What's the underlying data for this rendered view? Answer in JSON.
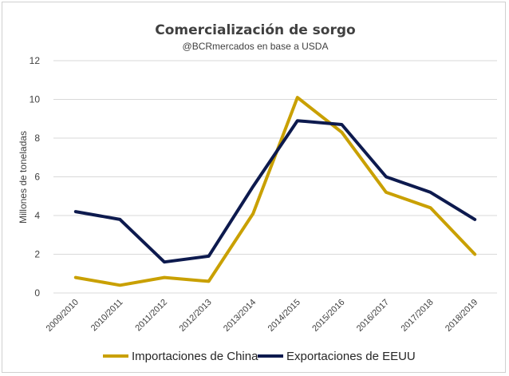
{
  "chart_data": {
    "type": "line",
    "title": "Comercialización de sorgo",
    "subtitle": "@BCRmercados en base a USDA",
    "xlabel": "",
    "ylabel": "Millones de toneladas",
    "ylim": [
      0,
      12
    ],
    "yticks": [
      0,
      2,
      4,
      6,
      8,
      10,
      12
    ],
    "grid": true,
    "legend_position": "bottom",
    "categories": [
      "2009/2010",
      "2010/2011",
      "2011/2012",
      "2012/2013",
      "2013/2014",
      "2014/2015",
      "2015/2016",
      "2016/2017",
      "2017/2018",
      "2018/2019"
    ],
    "series": [
      {
        "name": "Importaciones de China",
        "color": "#C9A000",
        "values": [
          0.8,
          0.4,
          0.8,
          0.6,
          4.1,
          10.1,
          8.3,
          5.2,
          4.4,
          2.0
        ]
      },
      {
        "name": "Exportaciones de EEUU",
        "color": "#0D1A4E",
        "values": [
          4.2,
          3.8,
          1.6,
          1.9,
          5.5,
          8.9,
          8.7,
          6.0,
          5.2,
          3.8
        ]
      }
    ]
  }
}
